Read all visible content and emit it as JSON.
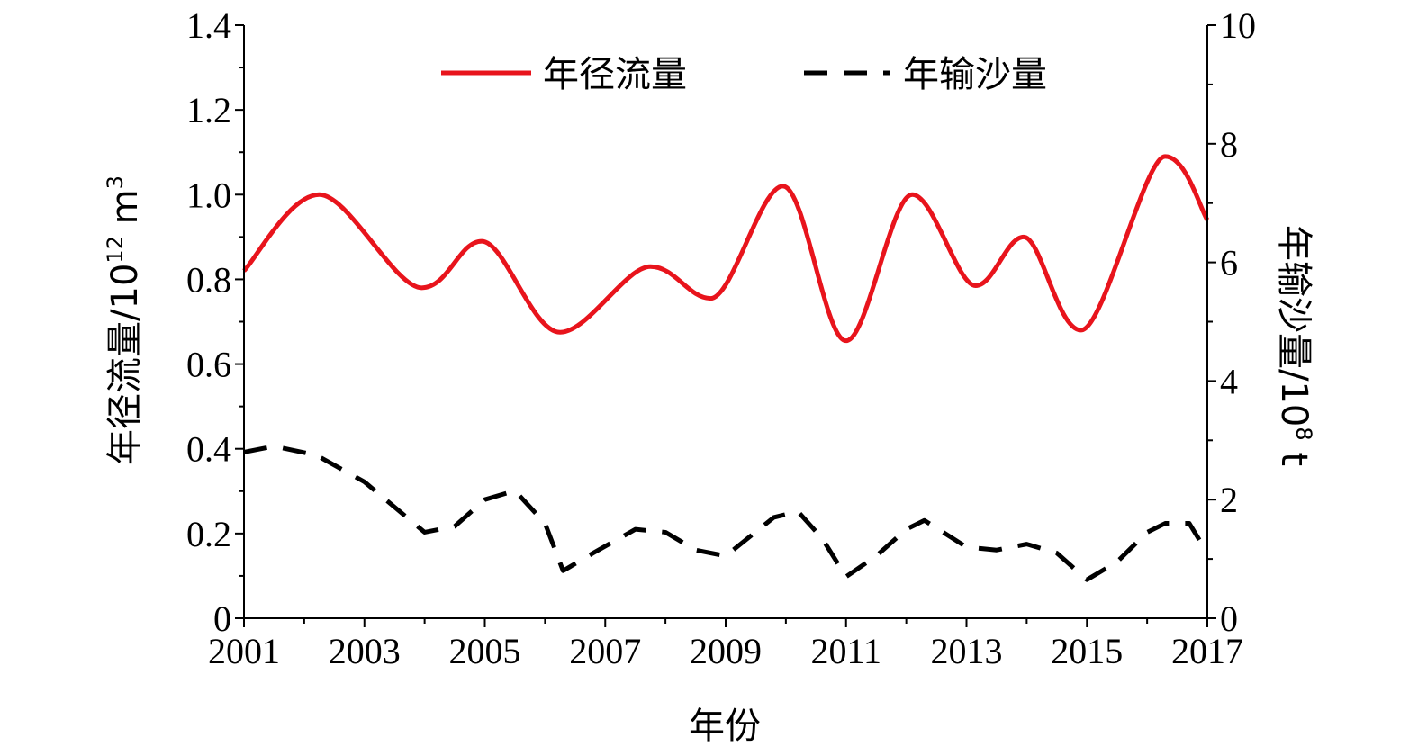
{
  "chart_data": {
    "type": "line",
    "xlabel": "年份",
    "x_ticks": [
      "2001",
      "2003",
      "2005",
      "2007",
      "2009",
      "2011",
      "2013",
      "2015",
      "2017"
    ],
    "xlim": [
      2001,
      2017
    ],
    "ylabel_left": {
      "main": "年径流量/10",
      "sup": "12",
      "unit": " m",
      "unit_sup": "3"
    },
    "ylabel_right": {
      "main": "年输沙量/10",
      "sup": "8",
      "unit": " t"
    },
    "ylim_left": [
      0,
      1.4
    ],
    "ylim_right": [
      0,
      10
    ],
    "yticks_left": [
      "0",
      "0.2",
      "0.4",
      "0.6",
      "0.8",
      "1.0",
      "1.2",
      "1.4"
    ],
    "yticks_right": [
      "0",
      "2",
      "4",
      "6",
      "8",
      "10"
    ],
    "legend_position": "top",
    "series": [
      {
        "name": "年径流量",
        "axis": "left",
        "color": "#e8141c",
        "style": "solid",
        "smooth": true,
        "x": [
          2001,
          2002.25,
          2003.95,
          2004.95,
          2006.25,
          2007.75,
          2008.75,
          2009.95,
          2011,
          2012.1,
          2013.15,
          2013.95,
          2014.9,
          2016.3,
          2017
        ],
        "y": [
          0.82,
          1.0,
          0.78,
          0.89,
          0.675,
          0.83,
          0.755,
          1.02,
          0.655,
          1.0,
          0.785,
          0.9,
          0.68,
          1.09,
          0.94
        ]
      },
      {
        "name": "年输沙量",
        "axis": "right",
        "color": "#000000",
        "style": "dashed",
        "smooth": false,
        "x": [
          2001,
          2001.5,
          2002.2,
          2003,
          2004,
          2004.5,
          2005,
          2005.5,
          2006,
          2006.3,
          2006.8,
          2007.5,
          2008,
          2008.5,
          2009,
          2009.8,
          2010.2,
          2010.6,
          2011,
          2011.5,
          2012,
          2012.3,
          2013,
          2013.5,
          2014,
          2014.5,
          2015,
          2015.5,
          2016,
          2016.3,
          2016.7,
          2017
        ],
        "y": [
          2.8,
          2.9,
          2.75,
          2.3,
          1.45,
          1.55,
          2.0,
          2.15,
          1.6,
          0.8,
          1.1,
          1.5,
          1.45,
          1.15,
          1.05,
          1.7,
          1.8,
          1.35,
          0.7,
          1.05,
          1.5,
          1.65,
          1.2,
          1.15,
          1.25,
          1.1,
          0.65,
          0.95,
          1.45,
          1.6,
          1.6,
          1.1
        ]
      }
    ]
  }
}
